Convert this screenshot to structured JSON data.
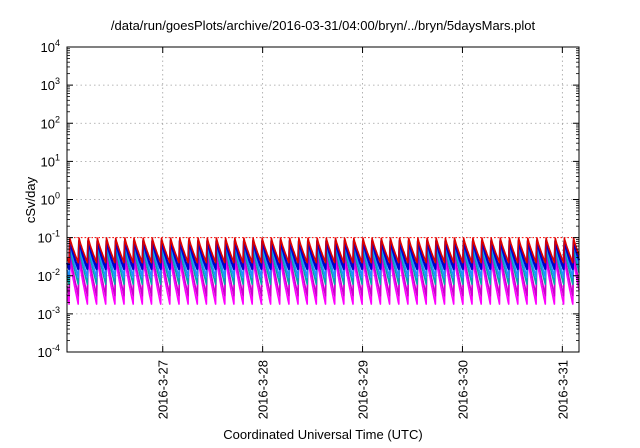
{
  "chart_data": {
    "type": "line",
    "title": "/data/run/goesPlots/archive/2016-03-31/04:00/bryn/../bryn/5daysMars.plot",
    "xlabel": "Coordinated Universal Time (UTC)",
    "ylabel": "cSv/day",
    "yscale": "log",
    "ylim": [
      0.0001,
      10000
    ],
    "y_ticks": [
      {
        "base": "10",
        "exp": "-4"
      },
      {
        "base": "10",
        "exp": "-3"
      },
      {
        "base": "10",
        "exp": "-2"
      },
      {
        "base": "10",
        "exp": "-1"
      },
      {
        "base": "10",
        "exp": "0"
      },
      {
        "base": "10",
        "exp": "1"
      },
      {
        "base": "10",
        "exp": "2"
      },
      {
        "base": "10",
        "exp": "3"
      },
      {
        "base": "10",
        "exp": "4"
      }
    ],
    "x_ticks": [
      "2016-3-27",
      "2016-3-28",
      "2016-3-29",
      "2016-3-30",
      "2016-3-31"
    ],
    "xlim": [
      "2016-03-26T01:00",
      "2016-03-31T04:00"
    ],
    "grid": true,
    "reference_line": {
      "value": 0.1,
      "color": "#ff0000",
      "style": "dotted"
    },
    "sawtooth": {
      "period_hours": 2.2,
      "start": "2016-03-26T01:30"
    },
    "series": [
      {
        "color": "#ff00ff",
        "peak": 0.03,
        "trough": 0.0018
      },
      {
        "color": "#cc00cc",
        "peak": 0.045,
        "trough": 0.003
      },
      {
        "color": "#00aaaa",
        "peak": 0.06,
        "trough": 0.006
      },
      {
        "color": "#1e90ff",
        "peak": 0.075,
        "trough": 0.009
      },
      {
        "color": "#0000cc",
        "peak": 0.085,
        "trough": 0.015
      },
      {
        "color": "#dd0000",
        "peak": 0.1,
        "trough": 0.022
      }
    ]
  }
}
